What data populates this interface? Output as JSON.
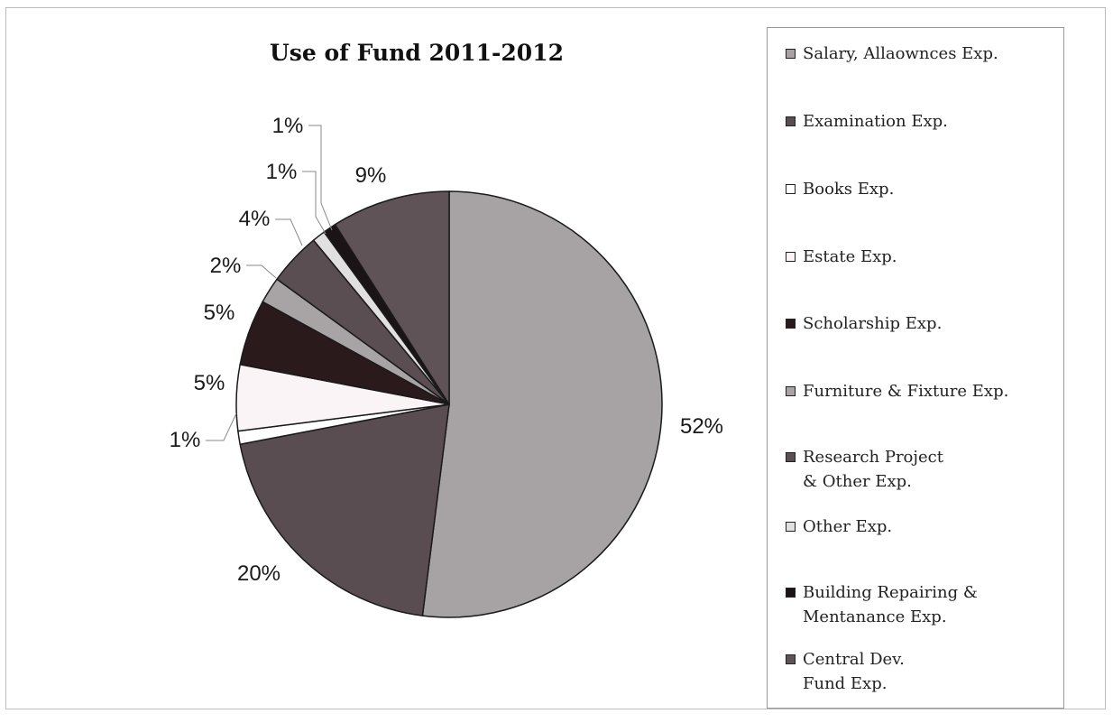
{
  "chart_data": {
    "type": "pie",
    "title": "Use of Fund 2011-2012",
    "slices": [
      {
        "label": "Salary, Allaownces Exp.",
        "value": 52,
        "display": "52%",
        "color": "#a7a3a4"
      },
      {
        "label": "Examination Exp.",
        "value": 20,
        "display": "20%",
        "color": "#5a4d51"
      },
      {
        "label": "Books Exp.",
        "value": 1,
        "display": "1%",
        "color": "#ffffff"
      },
      {
        "label": "Estate Exp.",
        "value": 5,
        "display": "5%",
        "color": "#faf4f6"
      },
      {
        "label": "Scholarship Exp.",
        "value": 5,
        "display": "5%",
        "color": "#2a1a1c"
      },
      {
        "label": "Furniture & Fixture Exp.",
        "value": 2,
        "display": "2%",
        "color": "#a8a4a5"
      },
      {
        "label": "Research Project\n& Other Exp.",
        "value": 4,
        "display": "4%",
        "color": "#5a4e52"
      },
      {
        "label": "Other Exp.",
        "value": 1,
        "display": "1%",
        "color": "#e2dfe0"
      },
      {
        "label": "Building Repairing &\nMentanance Exp.",
        "value": 1,
        "display": "1%",
        "color": "#1b1416"
      },
      {
        "label": "Central Dev.\nFund Exp.",
        "value": 9,
        "display": "9%",
        "color": "#5f5357"
      }
    ],
    "legend_position": "right"
  }
}
